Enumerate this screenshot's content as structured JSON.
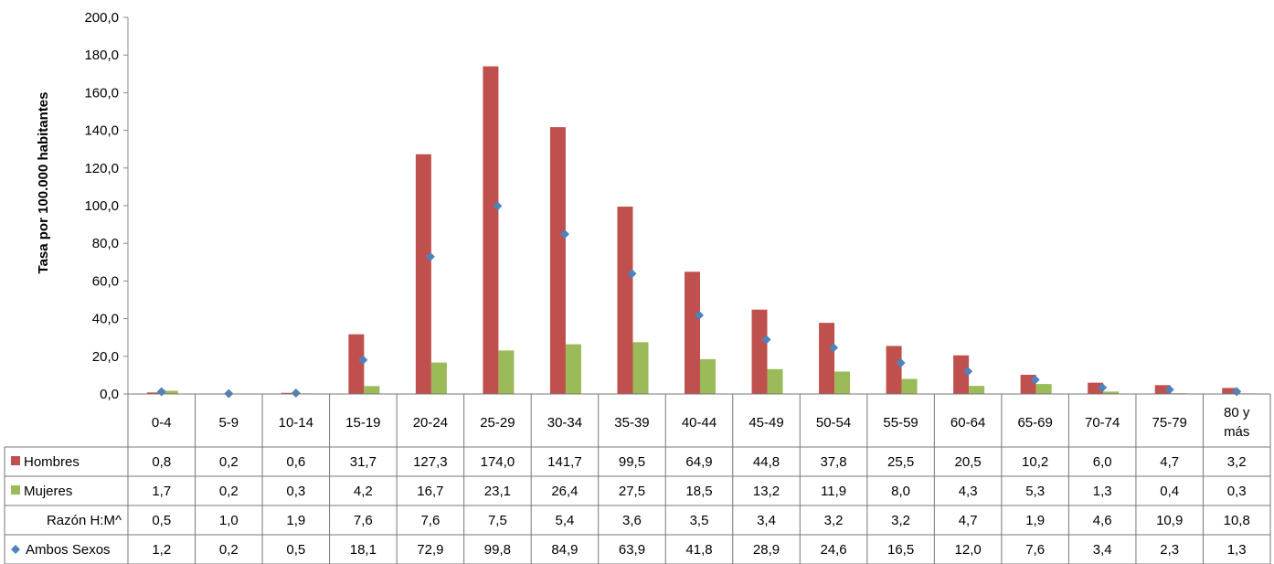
{
  "chart_data": {
    "type": "bar",
    "ylabel": "Tasa por 100.000 habitantes",
    "ylim": [
      0,
      200
    ],
    "yticks": [
      "0,0",
      "20,0",
      "40,0",
      "60,0",
      "80,0",
      "100,0",
      "120,0",
      "140,0",
      "160,0",
      "180,0",
      "200,0"
    ],
    "categories": [
      "0-4",
      "5-9",
      "10-14",
      "15-19",
      "20-24",
      "25-29",
      "30-34",
      "35-39",
      "40-44",
      "45-49",
      "50-54",
      "55-59",
      "60-64",
      "65-69",
      "70-74",
      "75-79",
      "80 y más"
    ],
    "grid": false,
    "series": [
      {
        "name": "Hombres",
        "kind": "bar",
        "color": "#C0504D",
        "values": [
          0.8,
          0.2,
          0.6,
          31.7,
          127.3,
          174.0,
          141.7,
          99.5,
          64.9,
          44.8,
          37.8,
          25.5,
          20.5,
          10.2,
          6.0,
          4.7,
          3.2
        ],
        "labels": [
          "0,8",
          "0,2",
          "0,6",
          "31,7",
          "127,3",
          "174,0",
          "141,7",
          "99,5",
          "64,9",
          "44,8",
          "37,8",
          "25,5",
          "20,5",
          "10,2",
          "6,0",
          "4,7",
          "3,2"
        ]
      },
      {
        "name": "Mujeres",
        "kind": "bar",
        "color": "#9BBB59",
        "values": [
          1.7,
          0.2,
          0.3,
          4.2,
          16.7,
          23.1,
          26.4,
          27.5,
          18.5,
          13.2,
          11.9,
          8.0,
          4.3,
          5.3,
          1.3,
          0.4,
          0.3
        ],
        "labels": [
          "1,7",
          "0,2",
          "0,3",
          "4,2",
          "16,7",
          "23,1",
          "26,4",
          "27,5",
          "18,5",
          "13,2",
          "11,9",
          "8,0",
          "4,3",
          "5,3",
          "1,3",
          "0,4",
          "0,3"
        ]
      },
      {
        "name": "Razón H:M^",
        "kind": "table-only",
        "values": [
          0.5,
          1.0,
          1.9,
          7.6,
          7.6,
          7.5,
          5.4,
          3.6,
          3.5,
          3.4,
          3.2,
          3.2,
          4.7,
          1.9,
          4.6,
          10.9,
          10.8
        ],
        "labels": [
          "0,5",
          "1,0",
          "1,9",
          "7,6",
          "7,6",
          "7,5",
          "5,4",
          "3,6",
          "3,5",
          "3,4",
          "3,2",
          "3,2",
          "4,7",
          "1,9",
          "4,6",
          "10,9",
          "10,8"
        ]
      },
      {
        "name": "Ambos Sexos",
        "kind": "marker",
        "color": "#4F81BD",
        "values": [
          1.2,
          0.2,
          0.5,
          18.1,
          72.9,
          99.8,
          84.9,
          63.9,
          41.8,
          28.9,
          24.6,
          16.5,
          12.0,
          7.6,
          3.4,
          2.3,
          1.3
        ],
        "labels": [
          "1,2",
          "0,2",
          "0,5",
          "18,1",
          "72,9",
          "99,8",
          "84,9",
          "63,9",
          "41,8",
          "28,9",
          "24,6",
          "16,5",
          "12,0",
          "7,6",
          "3,4",
          "2,3",
          "1,3"
        ]
      }
    ]
  }
}
